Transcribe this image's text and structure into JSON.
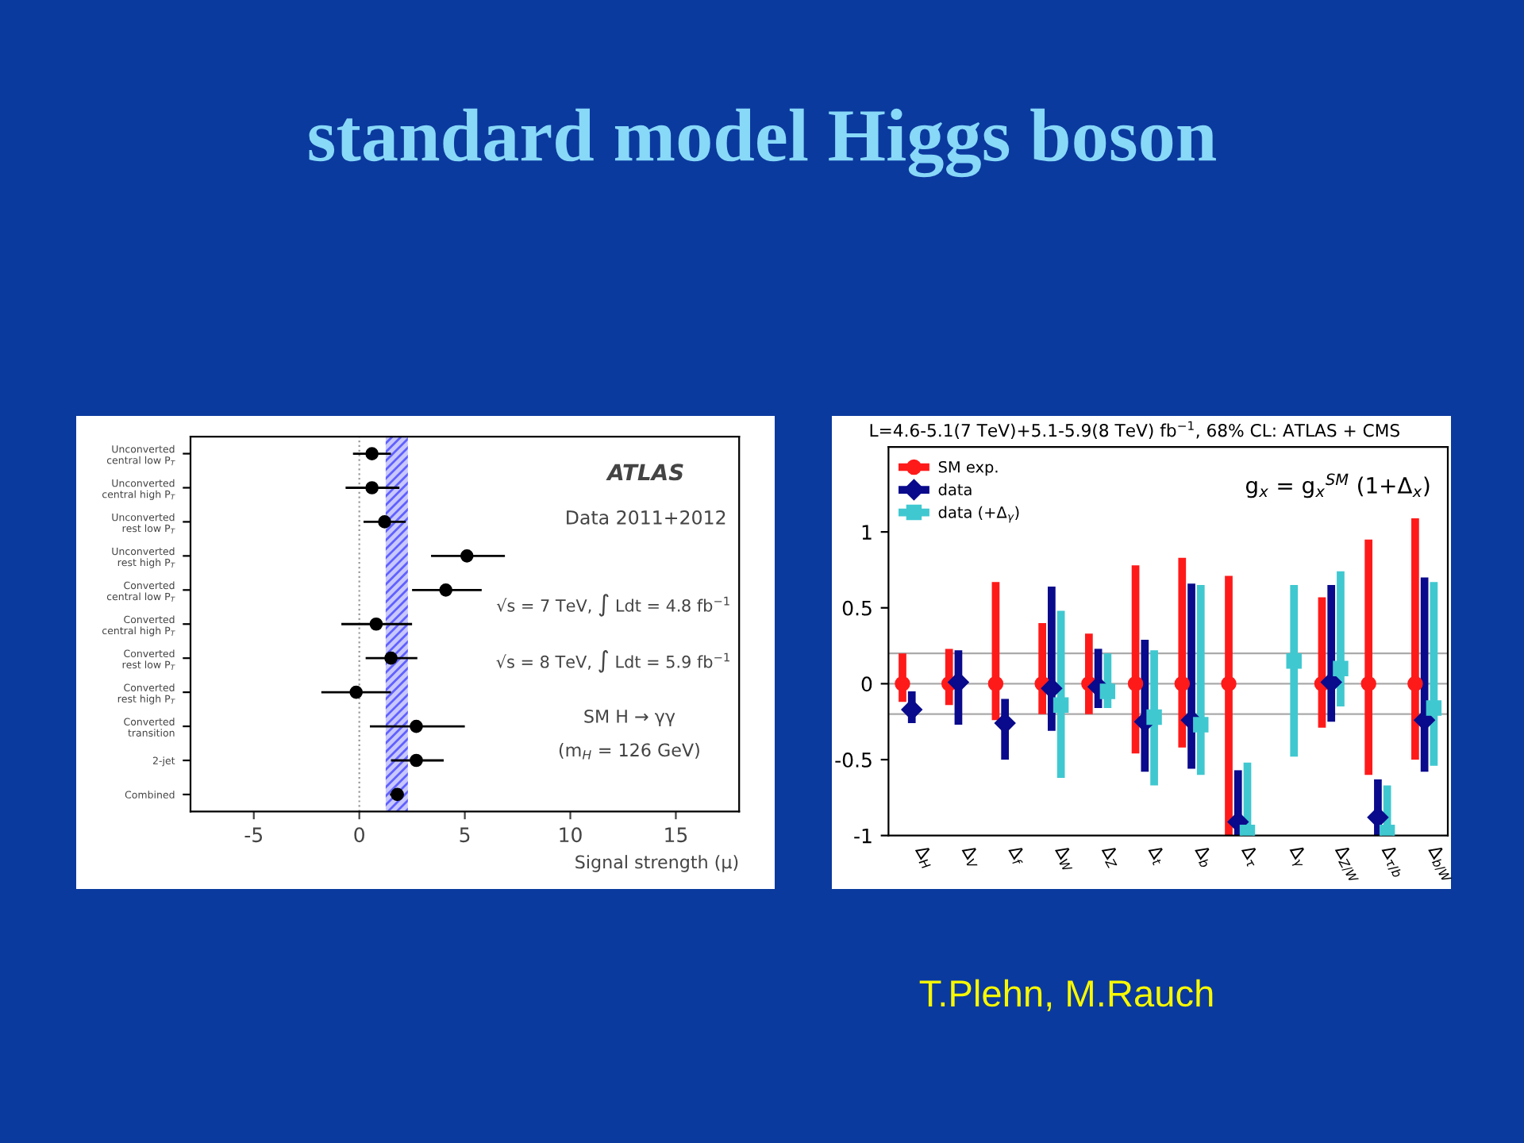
{
  "chart_data": [
    {
      "type": "scatter",
      "title": "standard model Higgs boson",
      "orientation": "horizontal",
      "categories": [
        "Unconverted\ncentral low P$_{T}$",
        "Unconverted\ncentral high P$_{T}$",
        "Unconverted\nrest low P$_{T}$",
        "Unconverted\nrest high P$_{T}$",
        "Converted\ncentral low P$_{T}$",
        "Converted\ncentral high P$_{T}$",
        "Converted\nrest low P$_{T}$",
        "Converted\nrest high P$_{T}$",
        "Converted\ntransition",
        "2-jet",
        "Combined"
      ],
      "series": [
        {
          "color": "#000000",
          "marker": "circle",
          "values": [
            0.6,
            0.6,
            1.2,
            5.1,
            4.1,
            0.8,
            1.5,
            -0.15,
            2.7,
            2.7,
            1.8
          ],
          "errors": [
            [
              -0.3,
              1.5
            ],
            [
              -0.65,
              1.9
            ],
            [
              0.2,
              2.2
            ],
            [
              3.4,
              6.9
            ],
            [
              2.5,
              5.8
            ],
            [
              -0.85,
              2.5
            ],
            [
              0.3,
              2.75
            ],
            [
              -1.8,
              1.5
            ],
            [
              0.5,
              5.0
            ],
            [
              1.5,
              4.0
            ],
            [
              1.45,
              2.1
            ]
          ]
        }
      ],
      "xlim": [
        -8,
        18
      ],
      "xticks": [
        -5,
        0,
        5,
        10,
        15
      ],
      "xlabel": "Signal strength (μ)",
      "ref_lines": [
        {
          "axis": "x",
          "value": 0,
          "color": "#999999",
          "line_style": "dotted"
        }
      ],
      "bands": [
        {
          "axis": "x",
          "from": 1.25,
          "to": 2.3,
          "color": "#6060ff"
        }
      ],
      "annotations": [
        "ATLAS",
        "Data 2011+2012",
        "√s = 7 TeV, ∫ Ldt = 4.8 fb$^{−1}$",
        "√s = 8 TeV, ∫ Ldt = 5.9 fb$^{−1}$",
        "SM H → γγ",
        "(m$_{H}$ = 126 GeV)"
      ],
      "grid": false,
      "legend": false
    },
    {
      "type": "scatter",
      "title": "L=4.6-5.1(7 TeV)+5.1-5.9(8 TeV) fb$^{−1}$, 68% CL: ATLAS + CMS",
      "categories": [
        "Δ$_{H}$",
        "Δ$_{V}$",
        "Δ$_{f}$",
        "Δ$_{W}$",
        "Δ$_{Z}$",
        "Δ$_{t}$",
        "Δ$_{b}$",
        "Δ$_{τ}$",
        "Δ$_{γ}$",
        "Δ$_{Z/W}$",
        "Δ$_{τ/b}$",
        "Δ$_{b/W}$"
      ],
      "series": [
        {
          "name": "SM exp.",
          "color": "#ff1a1a",
          "marker": "circle",
          "values": [
            0,
            0,
            0,
            0,
            0,
            0,
            0,
            0,
            null,
            0,
            0,
            0
          ],
          "errors": [
            [
              -0.12,
              0.2
            ],
            [
              -0.14,
              0.23
            ],
            [
              -0.24,
              0.67
            ],
            [
              -0.2,
              0.4
            ],
            [
              -0.2,
              0.33
            ],
            [
              -0.46,
              0.78
            ],
            [
              -0.42,
              0.83
            ],
            [
              -1,
              0.71
            ],
            null,
            [
              -0.29,
              0.57
            ],
            [
              -0.6,
              0.95
            ],
            [
              -0.5,
              1.09
            ]
          ]
        },
        {
          "name": "data",
          "color": "#0a0a8c",
          "marker": "diamond",
          "values": [
            -0.17,
            0.01,
            -0.26,
            -0.03,
            -0.02,
            -0.25,
            -0.24,
            -0.91,
            null,
            0.01,
            -0.88,
            -0.24
          ],
          "errors": [
            [
              -0.26,
              -0.05
            ],
            [
              -0.27,
              0.22
            ],
            [
              -0.5,
              -0.1
            ],
            [
              -0.31,
              0.64
            ],
            [
              -0.16,
              0.23
            ],
            [
              -0.58,
              0.29
            ],
            [
              -0.56,
              0.66
            ],
            [
              -1,
              -0.57
            ],
            null,
            [
              -0.25,
              0.65
            ],
            [
              -1,
              -0.63
            ],
            [
              -0.58,
              0.7
            ]
          ]
        },
        {
          "name": "data (+Δ$_{γ}$)",
          "color": "#40c8d0",
          "marker": "square",
          "values": [
            null,
            null,
            null,
            -0.14,
            -0.05,
            -0.22,
            -0.27,
            -0.98,
            0.15,
            0.1,
            -0.98,
            -0.16
          ],
          "errors": [
            null,
            null,
            null,
            [
              -0.62,
              0.48
            ],
            [
              -0.16,
              0.2
            ],
            [
              -0.67,
              0.22
            ],
            [
              -0.6,
              0.65
            ],
            [
              -1,
              -0.52
            ],
            [
              -0.48,
              0.65
            ],
            [
              -0.15,
              0.74
            ],
            [
              -1,
              -0.67
            ],
            [
              -0.54,
              0.67
            ]
          ]
        }
      ],
      "ylim": [
        -1,
        1.56
      ],
      "yticks": [
        -1,
        -0.5,
        0,
        0.5,
        1
      ],
      "ref_lines": [
        {
          "axis": "y",
          "value": 0.2,
          "color": "#aaaaaa"
        },
        {
          "axis": "y",
          "value": 0,
          "color": "#aaaaaa"
        },
        {
          "axis": "y",
          "value": -0.2,
          "color": "#aaaaaa"
        }
      ],
      "annotations": [
        "g$_{x}$ = g$_{x}$$^{SM}$ (1+Δ$_{x}$)",
        "T.Plehn, M.Rauch"
      ],
      "grid": false,
      "legend": "top left"
    }
  ]
}
